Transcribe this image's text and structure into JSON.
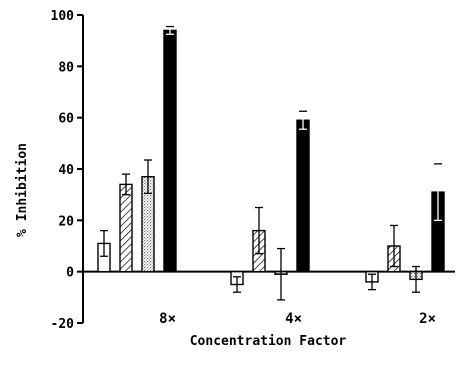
{
  "chart_data": {
    "type": "bar",
    "xlabel": "Concentration Factor",
    "ylabel": "% Inhibition",
    "ylim": [
      -20,
      100
    ],
    "yticks": [
      "-20",
      "0",
      "20",
      "40",
      "60",
      "80",
      "100"
    ],
    "categories": [
      "8×",
      "4×",
      "2×"
    ],
    "grid": false,
    "legend": "none",
    "series_fills": [
      "white",
      "diagonal-hatch",
      "stipple",
      "black"
    ],
    "colors": {
      "ink": "#000000",
      "background": "#ffffff",
      "stipple": "#9a9a9a"
    },
    "series": [
      {
        "values": [
          11,
          -5,
          -4
        ],
        "errors": [
          5,
          3,
          3
        ]
      },
      {
        "values": [
          34,
          16,
          10
        ],
        "errors": [
          4,
          9,
          8
        ]
      },
      {
        "values": [
          37,
          -1,
          -3
        ],
        "errors": [
          6.5,
          10,
          5
        ]
      },
      {
        "values": [
          94,
          59,
          31
        ],
        "errors": [
          1.5,
          3.5,
          11
        ]
      }
    ]
  }
}
